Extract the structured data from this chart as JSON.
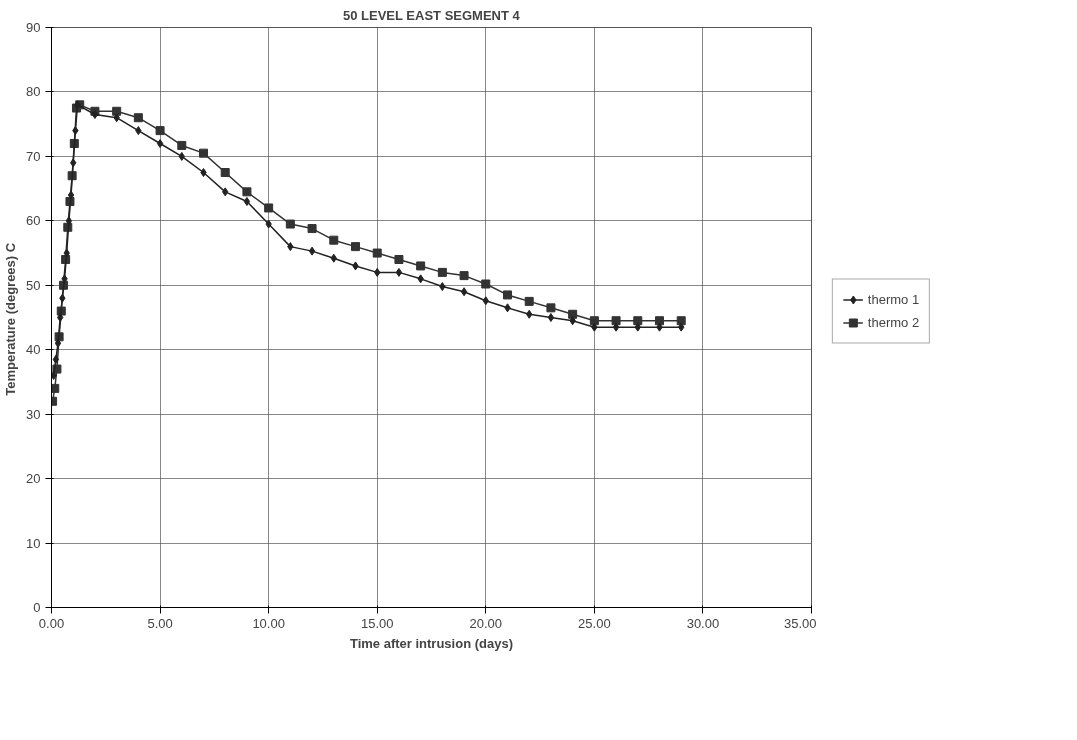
{
  "chart_data": {
    "type": "line",
    "title": "50 LEVEL EAST SEGMENT 4",
    "xlabel": "Time after intrusion (days)",
    "ylabel": "Temperature (degrees)  C",
    "xlim": [
      0,
      35
    ],
    "ylim": [
      0,
      90
    ],
    "xticks": [
      {
        "value": 0,
        "label": "0.00"
      },
      {
        "value": 5,
        "label": "5.00"
      },
      {
        "value": 10,
        "label": "10.00"
      },
      {
        "value": 15,
        "label": "15.00"
      },
      {
        "value": 20,
        "label": "20.00"
      },
      {
        "value": 25,
        "label": "25.00"
      },
      {
        "value": 30,
        "label": "30.00"
      },
      {
        "value": 35,
        "label": "35.00"
      }
    ],
    "yticks": [
      0,
      10,
      20,
      30,
      40,
      50,
      60,
      70,
      80,
      90
    ],
    "grid": true,
    "legend": "right",
    "series": [
      {
        "name": "thermo 1",
        "color": "#222222",
        "marker": "diamond",
        "x": [
          0.1,
          0.2,
          0.3,
          0.4,
          0.5,
          0.6,
          0.7,
          0.8,
          0.9,
          1.0,
          1.1,
          1.2,
          2,
          3,
          4,
          5,
          6,
          7,
          8,
          9,
          10,
          11,
          12,
          13,
          14,
          15,
          16,
          17,
          18,
          19,
          20,
          21,
          22,
          23,
          24,
          25,
          26,
          27,
          28,
          29
        ],
        "values": [
          36,
          38.5,
          41,
          45,
          48,
          51,
          55,
          60,
          64,
          69,
          74,
          78,
          76.5,
          76,
          74,
          72,
          70,
          67.5,
          64.5,
          63,
          59.5,
          56,
          55.3,
          54.2,
          53,
          52,
          52,
          51,
          49.8,
          49,
          47.6,
          46.5,
          45.5,
          45,
          44.5,
          43.5,
          43.5,
          43.5,
          43.5,
          43.5
        ]
      },
      {
        "name": "thermo 2",
        "color": "#333333",
        "marker": "square",
        "x": [
          0.05,
          0.15,
          0.25,
          0.35,
          0.45,
          0.55,
          0.65,
          0.75,
          0.85,
          0.95,
          1.05,
          1.15,
          1.3,
          2,
          3,
          4,
          5,
          6,
          7,
          8,
          9,
          10,
          11,
          12,
          13,
          14,
          15,
          16,
          17,
          18,
          19,
          20,
          21,
          22,
          23,
          24,
          25,
          26,
          27,
          28,
          29
        ],
        "values": [
          32,
          34,
          37,
          42,
          46,
          50,
          54,
          59,
          63,
          67,
          72,
          77.5,
          78,
          77,
          77,
          76,
          74,
          71.7,
          70.5,
          67.5,
          64.5,
          62,
          59.5,
          58.8,
          57,
          56,
          55,
          54,
          53,
          52,
          51.5,
          50.2,
          48.5,
          47.5,
          46.5,
          45.5,
          44.5,
          44.5,
          44.5,
          44.5,
          44.5
        ]
      }
    ]
  }
}
